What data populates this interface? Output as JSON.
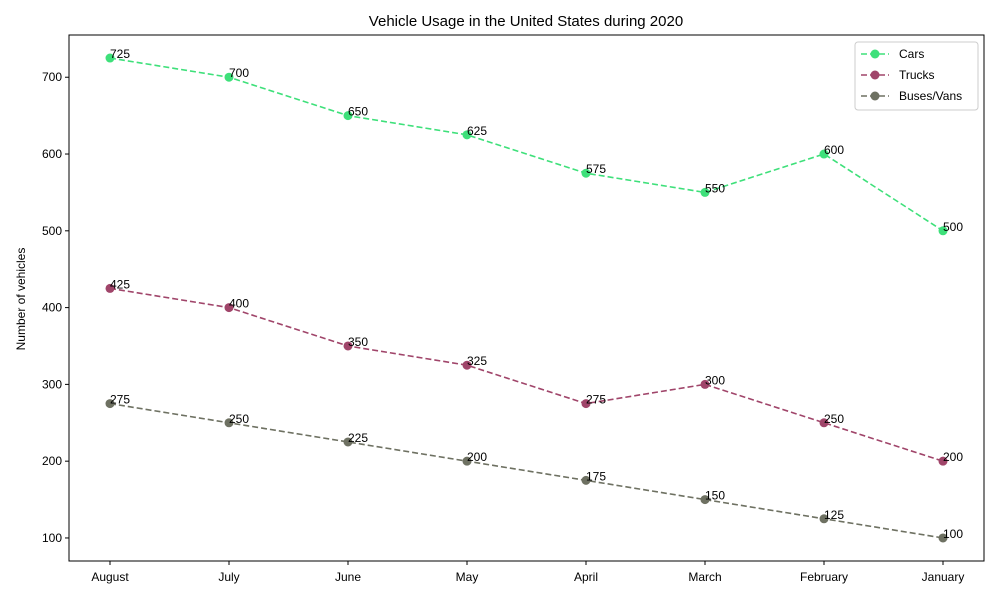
{
  "chart_data": {
    "type": "line",
    "title": "Vehicle Usage in the United States during 2020",
    "xlabel": "",
    "ylabel": "Number of vehicles",
    "categories": [
      "August",
      "July",
      "June",
      "May",
      "April",
      "March",
      "February",
      "January"
    ],
    "yticks": [
      100,
      200,
      300,
      400,
      500,
      600,
      700
    ],
    "ylim": [
      70,
      755
    ],
    "grid": false,
    "legend_position": "top-right",
    "series": [
      {
        "name": "Cars",
        "color": "#3ee07a",
        "values": [
          725,
          700,
          650,
          625,
          575,
          550,
          600,
          500
        ]
      },
      {
        "name": "Trucks",
        "color": "#a0456a",
        "values": [
          425,
          400,
          350,
          325,
          275,
          300,
          250,
          200
        ]
      },
      {
        "name": "Buses/Vans",
        "color": "#6e7162",
        "values": [
          275,
          250,
          225,
          200,
          175,
          150,
          125,
          100
        ]
      }
    ]
  }
}
